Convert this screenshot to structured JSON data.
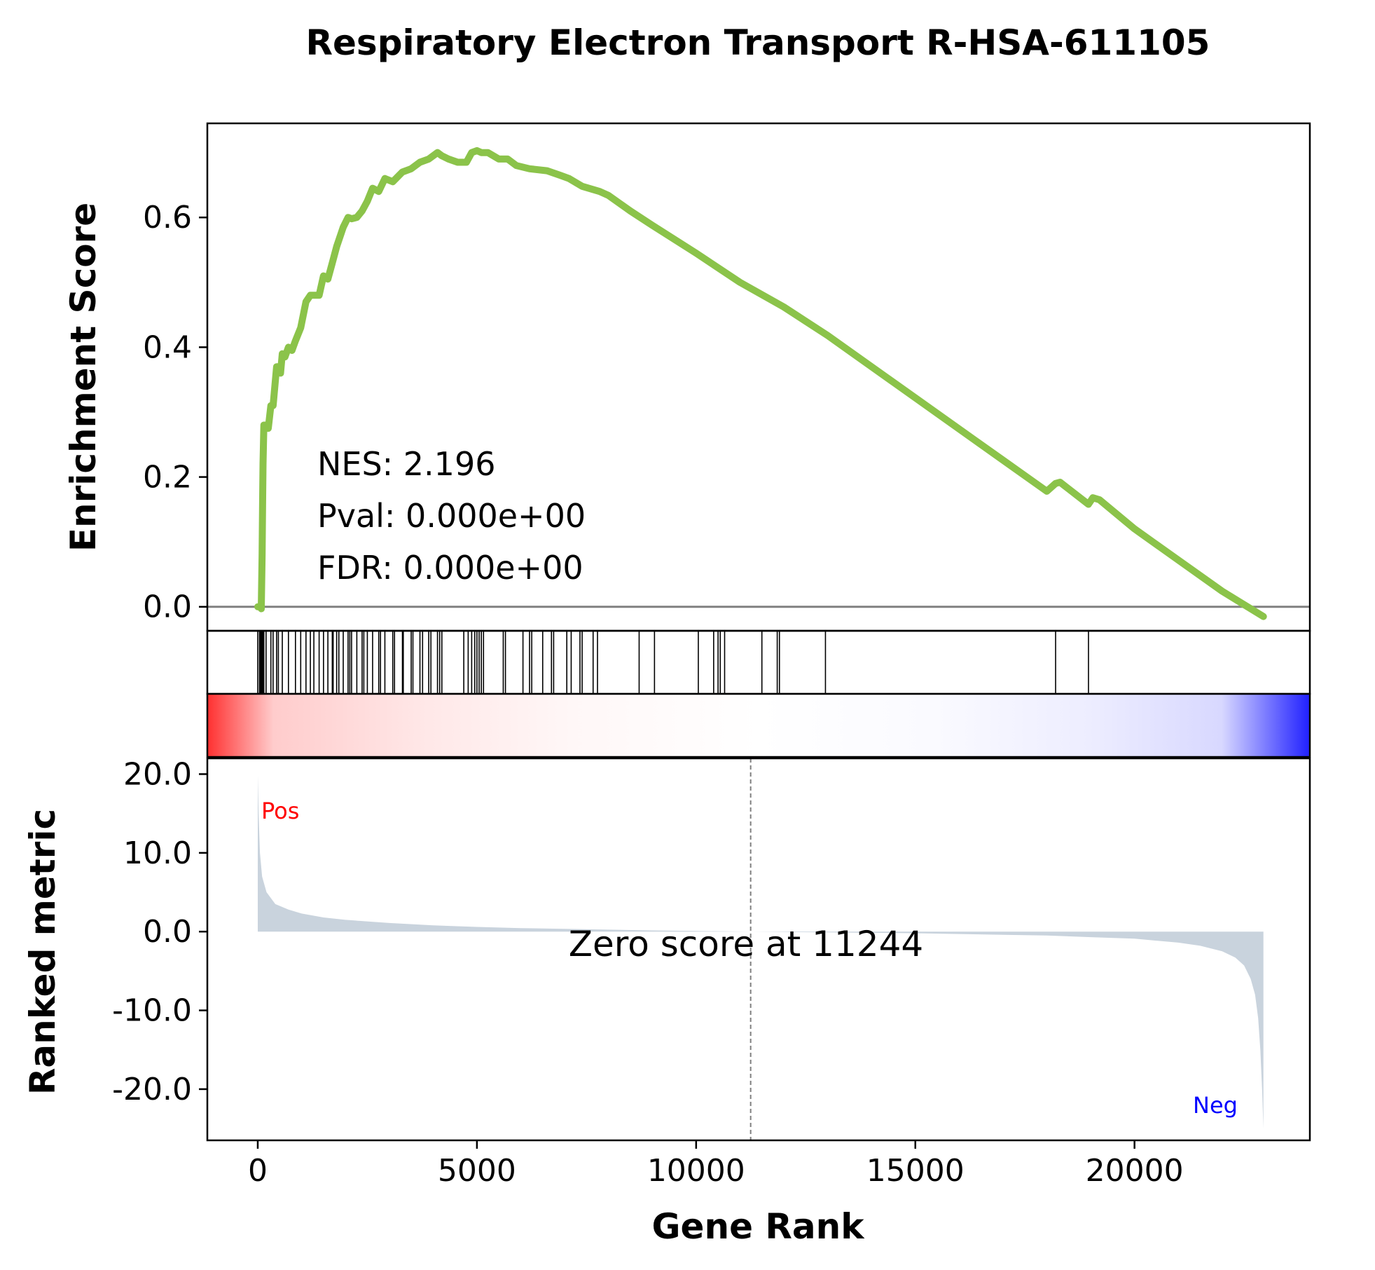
{
  "chart_data": {
    "type": "line",
    "title": "Respiratory Electron Transport R-HSA-611105",
    "xlabel": "Gene Rank",
    "xlim": [
      -1150,
      24000
    ],
    "x_ticks": [
      0,
      5000,
      10000,
      15000,
      20000
    ],
    "x_tick_labels": [
      "0",
      "5000",
      "10000",
      "15000",
      "20000"
    ],
    "line_color": "#8bc34a",
    "enrichment": {
      "ylabel": "Enrichment Score",
      "ylim": [
        -0.037,
        0.745
      ],
      "y_ticks": [
        0.0,
        0.2,
        0.4,
        0.6
      ],
      "y_tick_labels": [
        "0.0",
        "0.2",
        "0.4",
        "0.6"
      ],
      "x": [
        0,
        40,
        60,
        80,
        100,
        110,
        120,
        140,
        190,
        220,
        240,
        300,
        350,
        430,
        470,
        520,
        560,
        620,
        700,
        780,
        860,
        980,
        1100,
        1200,
        1280,
        1400,
        1500,
        1600,
        1700,
        1800,
        1950,
        2060,
        2140,
        2260,
        2380,
        2500,
        2620,
        2760,
        2900,
        3080,
        3300,
        3500,
        3700,
        3900,
        4100,
        4200,
        4350,
        4560,
        4760,
        4880,
        5000,
        5100,
        5250,
        5500,
        5700,
        5900,
        6200,
        6600,
        6900,
        7100,
        7400,
        7800,
        8000,
        8500,
        9000,
        10000,
        11000,
        12000,
        13000,
        14000,
        15000,
        16000,
        17000,
        18000,
        18200,
        18300,
        18950,
        19050,
        19200,
        20000,
        21000,
        22000,
        22940
      ],
      "y": [
        0.0,
        0.0,
        0.0,
        -0.003,
        0.08,
        0.16,
        0.22,
        0.28,
        0.28,
        0.275,
        0.275,
        0.31,
        0.31,
        0.37,
        0.37,
        0.36,
        0.39,
        0.385,
        0.4,
        0.395,
        0.41,
        0.43,
        0.47,
        0.48,
        0.48,
        0.48,
        0.51,
        0.505,
        0.53,
        0.555,
        0.585,
        0.6,
        0.598,
        0.6,
        0.61,
        0.625,
        0.645,
        0.64,
        0.66,
        0.655,
        0.67,
        0.675,
        0.685,
        0.69,
        0.7,
        0.695,
        0.69,
        0.685,
        0.685,
        0.7,
        0.703,
        0.7,
        0.7,
        0.69,
        0.69,
        0.68,
        0.675,
        0.672,
        0.665,
        0.66,
        0.648,
        0.64,
        0.634,
        0.61,
        0.588,
        0.545,
        0.5,
        0.462,
        0.418,
        0.37,
        0.322,
        0.274,
        0.226,
        0.178,
        0.19,
        0.192,
        0.158,
        0.168,
        0.165,
        0.12,
        0.072,
        0.024,
        -0.015
      ]
    },
    "hits": [
      0,
      40,
      60,
      80,
      100,
      110,
      120,
      140,
      190,
      300,
      350,
      430,
      470,
      560,
      700,
      860,
      980,
      1100,
      1200,
      1280,
      1400,
      1500,
      1600,
      1700,
      1720,
      1800,
      1850,
      1950,
      2060,
      2100,
      2140,
      2260,
      2380,
      2420,
      2500,
      2620,
      2760,
      2800,
      2900,
      3080,
      3120,
      3300,
      3320,
      3500,
      3540,
      3700,
      3760,
      3900,
      3950,
      4100,
      4150,
      4200,
      4700,
      4800,
      4880,
      4950,
      5000,
      5050,
      5100,
      5150,
      5600,
      5650,
      6050,
      6200,
      6250,
      6500,
      6700,
      6750,
      7050,
      7150,
      7350,
      7400,
      7650,
      7750,
      8700,
      9050,
      10050,
      10400,
      10500,
      10550,
      10650,
      11500,
      11850,
      11900,
      12950,
      18200,
      18950
    ],
    "gradient_stops": [
      {
        "offset": 0.0,
        "color": "#ff3030"
      },
      {
        "offset": 0.06,
        "color": "#ffcccc"
      },
      {
        "offset": 0.2,
        "color": "#ffe8e8"
      },
      {
        "offset": 0.33,
        "color": "#fff7f7"
      },
      {
        "offset": 0.5,
        "color": "#ffffff"
      },
      {
        "offset": 0.66,
        "color": "#fafaff"
      },
      {
        "offset": 0.8,
        "color": "#ededff"
      },
      {
        "offset": 0.92,
        "color": "#d8d8ff"
      },
      {
        "offset": 1.0,
        "color": "#2020ff"
      }
    ],
    "ranked_metric": {
      "ylabel": "Ranked metric",
      "ylim": [
        -26.5,
        22.0
      ],
      "y_ticks": [
        20.0,
        10.0,
        0.0,
        -10.0,
        -20.0
      ],
      "y_tick_labels": [
        "20.0",
        "10.0",
        "0.0",
        "-10.0",
        "-20.0"
      ],
      "fill_color": "#c9d3dd",
      "x": [
        0,
        20,
        50,
        100,
        200,
        400,
        700,
        1000,
        1500,
        2000,
        3000,
        4000,
        5000,
        6000,
        7000,
        8000,
        9000,
        10000,
        11244,
        12000,
        13000,
        14000,
        15000,
        16000,
        17000,
        18000,
        19000,
        20000,
        21000,
        21500,
        22000,
        22300,
        22500,
        22650,
        22750,
        22820,
        22870,
        22910,
        22940
      ],
      "y": [
        19.8,
        15.0,
        10.0,
        7.0,
        5.0,
        3.5,
        2.8,
        2.3,
        1.8,
        1.5,
        1.1,
        0.8,
        0.6,
        0.45,
        0.35,
        0.25,
        0.15,
        0.08,
        0.0,
        -0.05,
        -0.1,
        -0.15,
        -0.2,
        -0.3,
        -0.4,
        -0.5,
        -0.7,
        -0.9,
        -1.4,
        -1.8,
        -2.5,
        -3.3,
        -4.3,
        -6.0,
        -8.0,
        -11.0,
        -15.0,
        -20.0,
        -25.0
      ]
    },
    "zero_score_rank": 11244,
    "annotations": {
      "nes": "NES: 2.196",
      "pval": "Pval: 0.000e+00",
      "fdr": "FDR: 0.000e+00",
      "zero_score": "Zero score at 11244",
      "pos": "Pos",
      "neg": "Neg"
    },
    "colors": {
      "pos": "#ff0000",
      "neg": "#0000ff",
      "zero_line": "#808080",
      "hit_line": "#000000"
    }
  }
}
